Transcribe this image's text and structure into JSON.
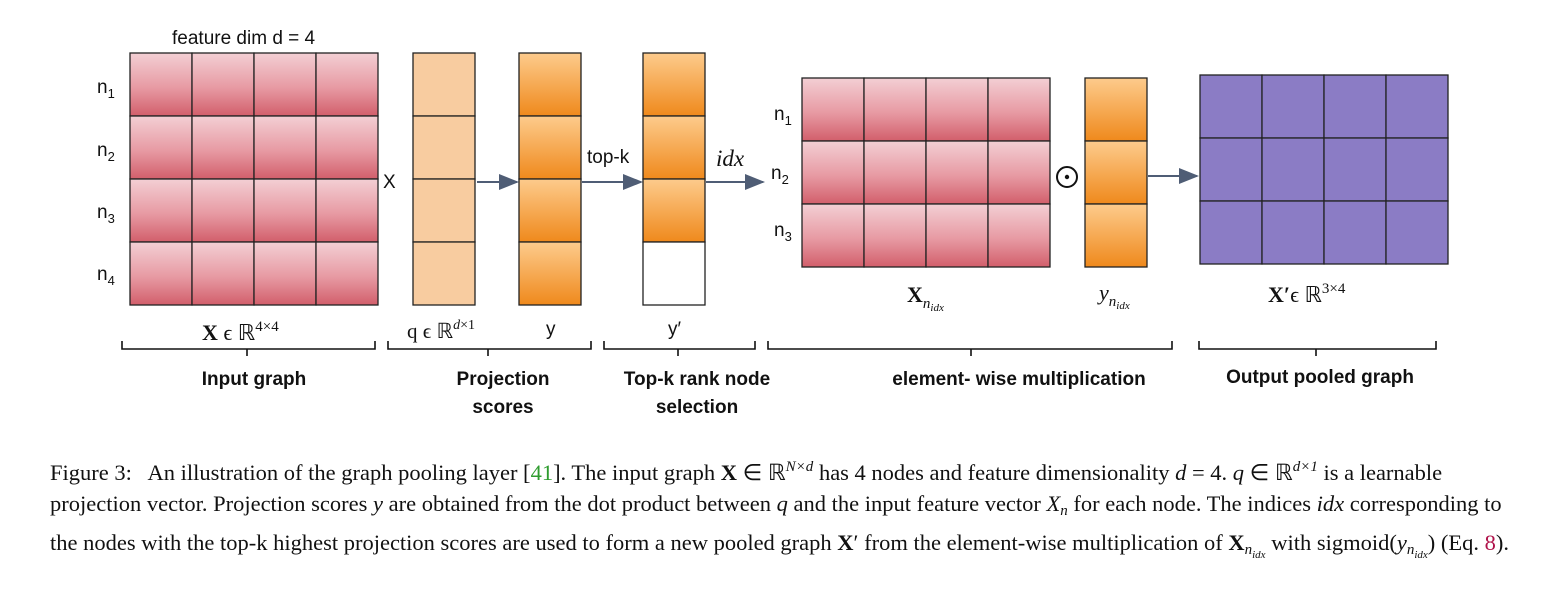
{
  "diagram": {
    "feature_dim_label": "feature dim d = 4",
    "row_labels_input": [
      "n1",
      "n2",
      "n3",
      "n4"
    ],
    "row_labels_sel": [
      "n1",
      "n2",
      "n3"
    ],
    "times_sign": "X",
    "topk_arrow_label": "top-k",
    "idx_label": "idx",
    "odot_sign": "⊙",
    "below_labels": {
      "input": "X ϵ ℝ4×4",
      "proj_vec": "q ϵ ℝd×1",
      "y": "y",
      "y_prime": "y′",
      "x_nidx": "Xnidx",
      "y_nidx": "ynidx",
      "output": "X′ϵ ℝ3×4"
    },
    "group_labels": {
      "input_graph": "Input graph",
      "projection_1": "Projection",
      "projection_2": "scores",
      "topk_1": "Top-k rank node",
      "topk_2": "selection",
      "elementwise": "element- wise multiplication",
      "output": "Output pooled graph"
    },
    "colors": {
      "red_top": "#f3cfd4",
      "red_bottom": "#d6636e",
      "orange_top": "#fcc987",
      "orange_bottom": "#f18a1e",
      "peach": "#f8cca0",
      "purple": "#8b7cc5",
      "arrow": "#4f5d75"
    }
  },
  "caption": {
    "lead": "Figure 3:",
    "t1": "An illustration of the graph pooling layer [",
    "cite": "41",
    "t2": "]. The input graph ",
    "t3": " has 4 nodes and feature dimensionality ",
    "t4": " is a learnable projection vector. Projection scores ",
    "t5": " are obtained from the dot product between ",
    "t6": " and the input feature vector ",
    "t7": " for each node. The indices ",
    "t8": " corresponding to the nodes with the top-k highest projection scores are used to form a new pooled graph ",
    "t9": " from the element-wise multiplication of ",
    "t10": " with sigmoid(",
    "t11": ") (Eq. ",
    "eq": "8",
    "t12": ")."
  }
}
